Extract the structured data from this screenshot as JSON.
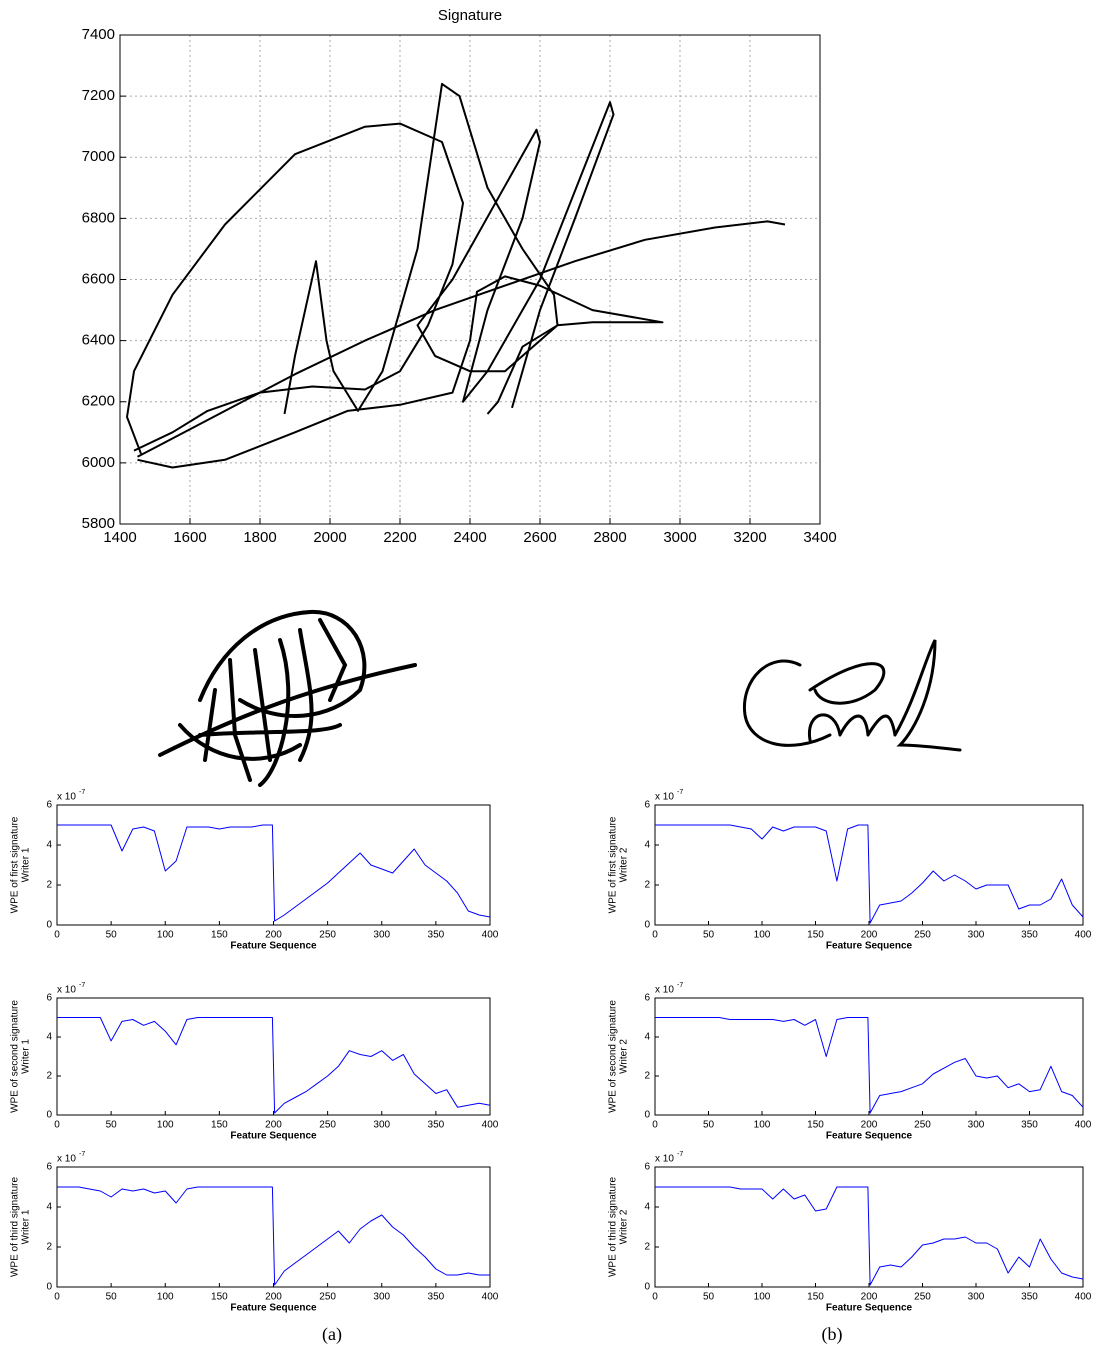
{
  "chart_data": [
    {
      "type": "line",
      "title": "Signature",
      "color": "#000000",
      "grid": true,
      "xlim": [
        1400,
        3400
      ],
      "xticks": [
        1400,
        1600,
        1800,
        2000,
        2200,
        2400,
        2600,
        2800,
        3000,
        3200,
        3400
      ],
      "ylim": [
        5800,
        7400
      ],
      "yticks": [
        5800,
        6000,
        6200,
        6400,
        6600,
        6800,
        7000,
        7200,
        7400
      ],
      "x": [
        3300,
        3250,
        3100,
        2900,
        2700,
        2500,
        2300,
        2100,
        1900,
        1700,
        1500,
        1450,
        null,
        1460,
        1420,
        1440,
        1550,
        1700,
        1900,
        2100,
        2200,
        2320,
        2380,
        2350,
        2280,
        2200,
        2100,
        1950,
        1800,
        1650,
        1550,
        1440,
        null,
        1450,
        1550,
        1700,
        1900,
        2050,
        2200,
        2350,
        2400,
        2420,
        2500,
        2600,
        2750,
        2950,
        2750,
        2650,
        2550,
        2480,
        2450,
        null,
        1870,
        1900,
        1960,
        1990,
        2010,
        2080,
        2150,
        2250,
        2320,
        2370,
        2450,
        2550,
        2640,
        2650,
        2500,
        2400,
        2300,
        2250,
        2350,
        2590,
        2600,
        2550,
        2450,
        2380,
        2450,
        2600,
        2800,
        2810,
        2700,
        2600,
        2550,
        2520
      ],
      "values": [
        6780,
        6790,
        6770,
        6730,
        6660,
        6580,
        6500,
        6400,
        6290,
        6170,
        6050,
        6020,
        null,
        6030,
        6150,
        6300,
        6550,
        6780,
        7010,
        7100,
        7110,
        7050,
        6850,
        6650,
        6450,
        6300,
        6240,
        6250,
        6230,
        6170,
        6100,
        6040,
        null,
        6010,
        5985,
        6010,
        6100,
        6170,
        6190,
        6230,
        6400,
        6560,
        6610,
        6580,
        6500,
        6460,
        6460,
        6450,
        6380,
        6200,
        6160,
        null,
        6160,
        6350,
        6660,
        6400,
        6300,
        6170,
        6300,
        6700,
        7240,
        7200,
        6900,
        6700,
        6550,
        6450,
        6300,
        6300,
        6350,
        6450,
        6600,
        7090,
        7050,
        6800,
        6500,
        6200,
        6300,
        6600,
        7180,
        7140,
        6800,
        6500,
        6300,
        6180
      ]
    },
    {
      "type": "line",
      "color": "#0000ff",
      "xlabel": "Feature Sequence",
      "ylabel": [
        "WPE  of first signature",
        "Writer 1"
      ],
      "y_scale_label": {
        "base": "x 10",
        "exponent": "-7"
      },
      "xlim": [
        0,
        400
      ],
      "xticks": [
        0,
        50,
        100,
        150,
        200,
        250,
        300,
        350,
        400
      ],
      "ylim": [
        0,
        6
      ],
      "yticks": [
        0,
        2,
        4,
        6
      ],
      "x": [
        0,
        10,
        20,
        30,
        40,
        50,
        60,
        70,
        80,
        90,
        100,
        110,
        120,
        130,
        140,
        150,
        160,
        170,
        180,
        190,
        199,
        201,
        210,
        220,
        230,
        240,
        250,
        260,
        270,
        280,
        290,
        300,
        310,
        320,
        330,
        340,
        350,
        360,
        370,
        380,
        390,
        400
      ],
      "values": [
        5,
        5,
        5,
        5,
        5,
        5,
        3.7,
        4.8,
        4.9,
        4.7,
        2.7,
        3.2,
        4.9,
        4.9,
        4.9,
        4.8,
        4.9,
        4.9,
        4.9,
        5,
        5,
        0.2,
        0.5,
        0.9,
        1.3,
        1.7,
        2.1,
        2.6,
        3.1,
        3.6,
        3.0,
        2.8,
        2.6,
        3.2,
        3.8,
        3.0,
        2.6,
        2.2,
        1.6,
        0.7,
        0.5,
        0.4
      ]
    },
    {
      "type": "line",
      "color": "#0000ff",
      "xlabel": "Feature Sequence",
      "ylabel": [
        "WPE of second signature",
        "Writer 1"
      ],
      "y_scale_label": {
        "base": "x 10",
        "exponent": "-7"
      },
      "xlim": [
        0,
        400
      ],
      "xticks": [
        0,
        50,
        100,
        150,
        200,
        250,
        300,
        350,
        400
      ],
      "ylim": [
        0,
        6
      ],
      "yticks": [
        0,
        2,
        4,
        6
      ],
      "x": [
        0,
        10,
        20,
        30,
        40,
        50,
        60,
        70,
        80,
        90,
        100,
        110,
        120,
        130,
        140,
        150,
        160,
        170,
        180,
        190,
        199,
        201,
        210,
        220,
        230,
        240,
        250,
        260,
        270,
        280,
        290,
        300,
        310,
        320,
        330,
        340,
        350,
        360,
        370,
        380,
        390,
        400
      ],
      "values": [
        5,
        5,
        5,
        5,
        5,
        3.8,
        4.8,
        4.9,
        4.6,
        4.8,
        4.3,
        3.6,
        4.9,
        5,
        5,
        5,
        5,
        5,
        5,
        5,
        5,
        0.1,
        0.6,
        0.9,
        1.2,
        1.6,
        2.0,
        2.5,
        3.3,
        3.1,
        3.0,
        3.3,
        2.8,
        3.1,
        2.1,
        1.6,
        1.1,
        1.3,
        0.4,
        0.5,
        0.6,
        0.5
      ]
    },
    {
      "type": "line",
      "color": "#0000ff",
      "xlabel": "Feature Sequence",
      "ylabel": [
        "WPE  of third signature",
        "Writer 1"
      ],
      "y_scale_label": {
        "base": "x 10",
        "exponent": "-7"
      },
      "xlim": [
        0,
        400
      ],
      "xticks": [
        0,
        50,
        100,
        150,
        200,
        250,
        300,
        350,
        400
      ],
      "ylim": [
        0,
        6
      ],
      "yticks": [
        0,
        2,
        4,
        6
      ],
      "x": [
        0,
        10,
        20,
        30,
        40,
        50,
        60,
        70,
        80,
        90,
        100,
        110,
        120,
        130,
        140,
        150,
        160,
        170,
        180,
        190,
        199,
        201,
        210,
        220,
        230,
        240,
        250,
        260,
        270,
        280,
        290,
        300,
        310,
        320,
        330,
        340,
        350,
        360,
        370,
        380,
        390,
        400
      ],
      "values": [
        5,
        5,
        5,
        4.9,
        4.8,
        4.5,
        4.9,
        4.8,
        4.9,
        4.7,
        4.8,
        4.2,
        4.9,
        5,
        5,
        5,
        5,
        5,
        5,
        5,
        5,
        0.1,
        0.8,
        1.2,
        1.6,
        2.0,
        2.4,
        2.8,
        2.2,
        2.9,
        3.3,
        3.6,
        3.0,
        2.6,
        2.0,
        1.5,
        0.9,
        0.6,
        0.6,
        0.7,
        0.6,
        0.6
      ]
    },
    {
      "type": "line",
      "color": "#0000ff",
      "xlabel": "Feature Sequence",
      "ylabel": [
        "WPE  of first signature",
        "Writer 2"
      ],
      "y_scale_label": {
        "base": "x 10",
        "exponent": "-7"
      },
      "xlim": [
        0,
        400
      ],
      "xticks": [
        0,
        50,
        100,
        150,
        200,
        250,
        300,
        350,
        400
      ],
      "ylim": [
        0,
        6
      ],
      "yticks": [
        0,
        2,
        4,
        6
      ],
      "x": [
        0,
        10,
        20,
        30,
        40,
        50,
        60,
        70,
        80,
        90,
        100,
        110,
        120,
        130,
        140,
        150,
        160,
        170,
        180,
        190,
        199,
        201,
        210,
        220,
        230,
        240,
        250,
        260,
        270,
        280,
        290,
        300,
        310,
        320,
        330,
        340,
        350,
        360,
        370,
        380,
        390,
        400
      ],
      "values": [
        5,
        5,
        5,
        5,
        5,
        5,
        5,
        5,
        4.9,
        4.8,
        4.3,
        4.9,
        4.7,
        4.9,
        4.9,
        4.9,
        4.7,
        2.2,
        4.8,
        5,
        5,
        0.1,
        1.0,
        1.1,
        1.2,
        1.6,
        2.1,
        2.7,
        2.2,
        2.5,
        2.2,
        1.8,
        2.0,
        2.0,
        2.0,
        0.8,
        1.0,
        1.0,
        1.3,
        2.3,
        1.0,
        0.4
      ]
    },
    {
      "type": "line",
      "color": "#0000ff",
      "xlabel": "Feature Sequence",
      "ylabel": [
        "WPE of second signature",
        "Writer 2"
      ],
      "y_scale_label": {
        "base": "x 10",
        "exponent": "-7"
      },
      "xlim": [
        0,
        400
      ],
      "xticks": [
        0,
        50,
        100,
        150,
        200,
        250,
        300,
        350,
        400
      ],
      "ylim": [
        0,
        6
      ],
      "yticks": [
        0,
        2,
        4,
        6
      ],
      "x": [
        0,
        10,
        20,
        30,
        40,
        50,
        60,
        70,
        80,
        90,
        100,
        110,
        120,
        130,
        140,
        150,
        160,
        170,
        180,
        190,
        199,
        201,
        210,
        220,
        230,
        240,
        250,
        260,
        270,
        280,
        290,
        300,
        310,
        320,
        330,
        340,
        350,
        360,
        370,
        380,
        390,
        400
      ],
      "values": [
        5,
        5,
        5,
        5,
        5,
        5,
        5,
        4.9,
        4.9,
        4.9,
        4.9,
        4.9,
        4.8,
        4.9,
        4.6,
        4.9,
        3.0,
        4.9,
        5,
        5,
        5,
        0.1,
        1.0,
        1.1,
        1.2,
        1.4,
        1.6,
        2.1,
        2.4,
        2.7,
        2.9,
        2.0,
        1.9,
        2.0,
        1.4,
        1.6,
        1.2,
        1.3,
        2.5,
        1.2,
        1.0,
        0.4
      ]
    },
    {
      "type": "line",
      "color": "#0000ff",
      "xlabel": "Feature Sequence",
      "ylabel": [
        "WPE  of third signature",
        "Writer 2"
      ],
      "y_scale_label": {
        "base": "x 10",
        "exponent": "-7"
      },
      "xlim": [
        0,
        400
      ],
      "xticks": [
        0,
        50,
        100,
        150,
        200,
        250,
        300,
        350,
        400
      ],
      "ylim": [
        0,
        6
      ],
      "yticks": [
        0,
        2,
        4,
        6
      ],
      "x": [
        0,
        10,
        20,
        30,
        40,
        50,
        60,
        70,
        80,
        90,
        100,
        110,
        120,
        130,
        140,
        150,
        160,
        170,
        180,
        190,
        199,
        201,
        210,
        220,
        230,
        240,
        250,
        260,
        270,
        280,
        290,
        300,
        310,
        320,
        330,
        340,
        350,
        360,
        370,
        380,
        390,
        400
      ],
      "values": [
        5,
        5,
        5,
        5,
        5,
        5,
        5,
        5,
        4.9,
        4.9,
        4.9,
        4.4,
        4.9,
        4.4,
        4.6,
        3.8,
        3.9,
        5,
        5,
        5,
        5,
        0.1,
        1.0,
        1.1,
        1.0,
        1.5,
        2.1,
        2.2,
        2.4,
        2.4,
        2.5,
        2.2,
        2.2,
        1.9,
        0.7,
        1.5,
        1.0,
        2.4,
        1.4,
        0.7,
        0.5,
        0.4
      ]
    }
  ],
  "captions": [
    "(a)",
    "(b)"
  ]
}
